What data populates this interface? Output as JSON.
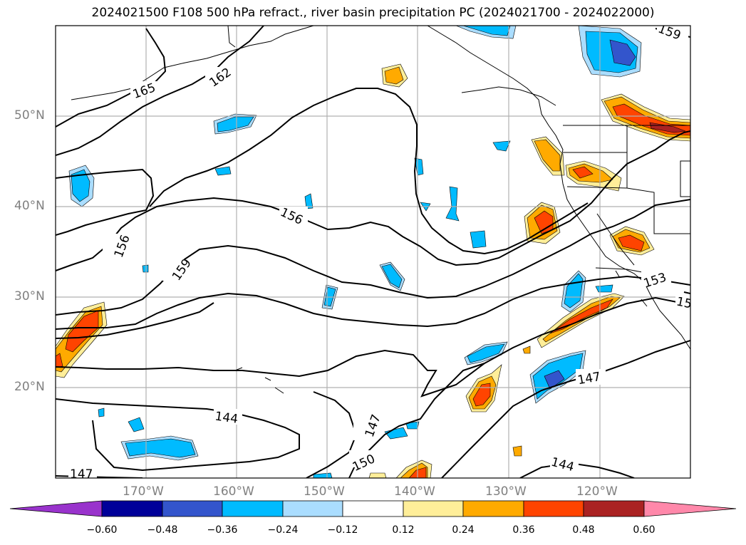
{
  "title": "2024021500 F108 500 hPa refract., river basin precipitation PC (2024021700 - 2024022000)",
  "lat_labels": [
    "50°N",
    "40°N",
    "30°N",
    "20°N"
  ],
  "lon_labels": [
    "170°W",
    "160°W",
    "150°W",
    "140°W",
    "130°W",
    "120°W"
  ],
  "contour_labels": [
    "165",
    "162",
    "159",
    "156",
    "156",
    "159",
    "153",
    "150",
    "147",
    "147",
    "147",
    "144",
    "144"
  ],
  "colorbar": {
    "colors": [
      "#9933cc",
      "#000099",
      "#3355cc",
      "#00bbff",
      "#aaddff",
      "#ffffff",
      "#ffee99",
      "#ffaa00",
      "#ff4400",
      "#aa2222",
      "#ff88aa"
    ],
    "ticks": [
      "−0.60",
      "−0.48",
      "−0.36",
      "−0.24",
      "−0.12",
      "0.12",
      "0.24",
      "0.36",
      "0.48",
      "0.60"
    ]
  }
}
